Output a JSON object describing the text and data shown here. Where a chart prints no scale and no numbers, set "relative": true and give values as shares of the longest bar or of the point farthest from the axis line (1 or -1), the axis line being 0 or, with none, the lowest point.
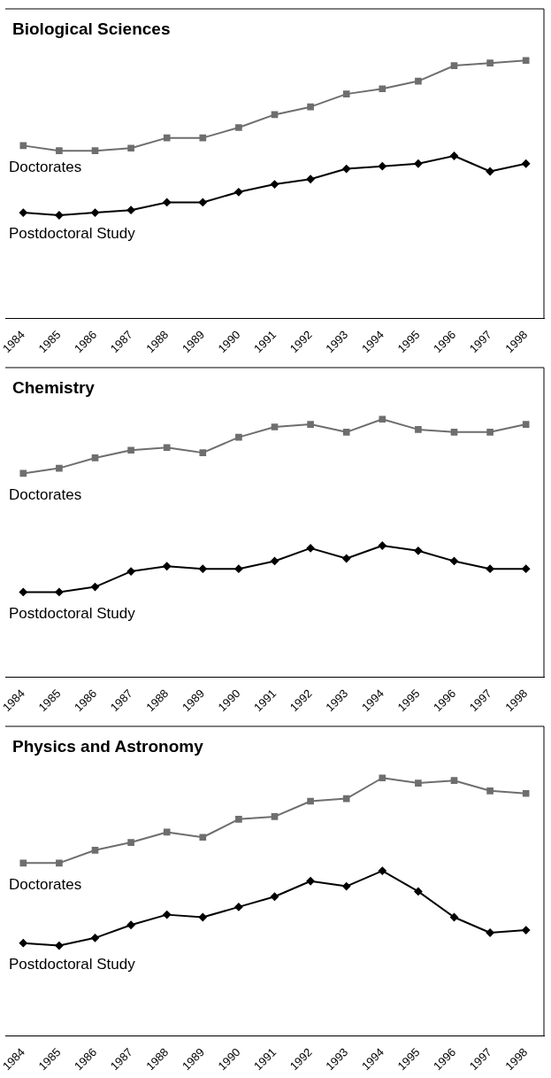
{
  "chart_data": [
    {
      "type": "line",
      "title": "Biological Sciences",
      "categories": [
        "1984",
        "1985",
        "1986",
        "1987",
        "1988",
        "1989",
        "1990",
        "1991",
        "1992",
        "1993",
        "1994",
        "1995",
        "1996",
        "1997",
        "1998"
      ],
      "relative": true,
      "series": [
        {
          "name": "Doctorates",
          "color": "#6e6e6e",
          "marker": "square",
          "values": [
            0.67,
            0.65,
            0.65,
            0.66,
            0.7,
            0.7,
            0.74,
            0.79,
            0.82,
            0.87,
            0.89,
            0.92,
            0.98,
            0.99,
            1.0
          ]
        },
        {
          "name": "Postdoctoral Study",
          "color": "#000000",
          "marker": "diamond",
          "values": [
            0.41,
            0.4,
            0.41,
            0.42,
            0.45,
            0.45,
            0.49,
            0.52,
            0.54,
            0.58,
            0.59,
            0.6,
            0.63,
            0.57,
            0.6
          ]
        }
      ]
    },
    {
      "type": "line",
      "title": "Chemistry",
      "categories": [
        "1984",
        "1985",
        "1986",
        "1987",
        "1988",
        "1989",
        "1990",
        "1991",
        "1992",
        "1993",
        "1994",
        "1995",
        "1996",
        "1997",
        "1998"
      ],
      "relative": true,
      "series": [
        {
          "name": "Doctorates",
          "color": "#6e6e6e",
          "marker": "square",
          "values": [
            0.79,
            0.81,
            0.85,
            0.88,
            0.89,
            0.87,
            0.93,
            0.97,
            0.98,
            0.95,
            1.0,
            0.96,
            0.95,
            0.95,
            0.98
          ]
        },
        {
          "name": "Postdoctoral Study",
          "color": "#000000",
          "marker": "diamond",
          "values": [
            0.33,
            0.33,
            0.35,
            0.41,
            0.43,
            0.42,
            0.42,
            0.45,
            0.5,
            0.46,
            0.51,
            0.49,
            0.45,
            0.42,
            0.42
          ]
        }
      ]
    },
    {
      "type": "line",
      "title": "Physics and Astronomy",
      "categories": [
        "1984",
        "1985",
        "1986",
        "1987",
        "1988",
        "1989",
        "1990",
        "1991",
        "1992",
        "1993",
        "1994",
        "1995",
        "1996",
        "1997",
        "1998"
      ],
      "relative": true,
      "series": [
        {
          "name": "Doctorates",
          "color": "#6e6e6e",
          "marker": "square",
          "values": [
            0.67,
            0.67,
            0.72,
            0.75,
            0.79,
            0.77,
            0.84,
            0.85,
            0.91,
            0.92,
            1.0,
            0.98,
            0.99,
            0.95,
            0.94
          ]
        },
        {
          "name": "Postdoctoral Study",
          "color": "#000000",
          "marker": "diamond",
          "values": [
            0.36,
            0.35,
            0.38,
            0.43,
            0.47,
            0.46,
            0.5,
            0.54,
            0.6,
            0.58,
            0.64,
            0.56,
            0.46,
            0.4,
            0.41
          ]
        }
      ]
    }
  ]
}
